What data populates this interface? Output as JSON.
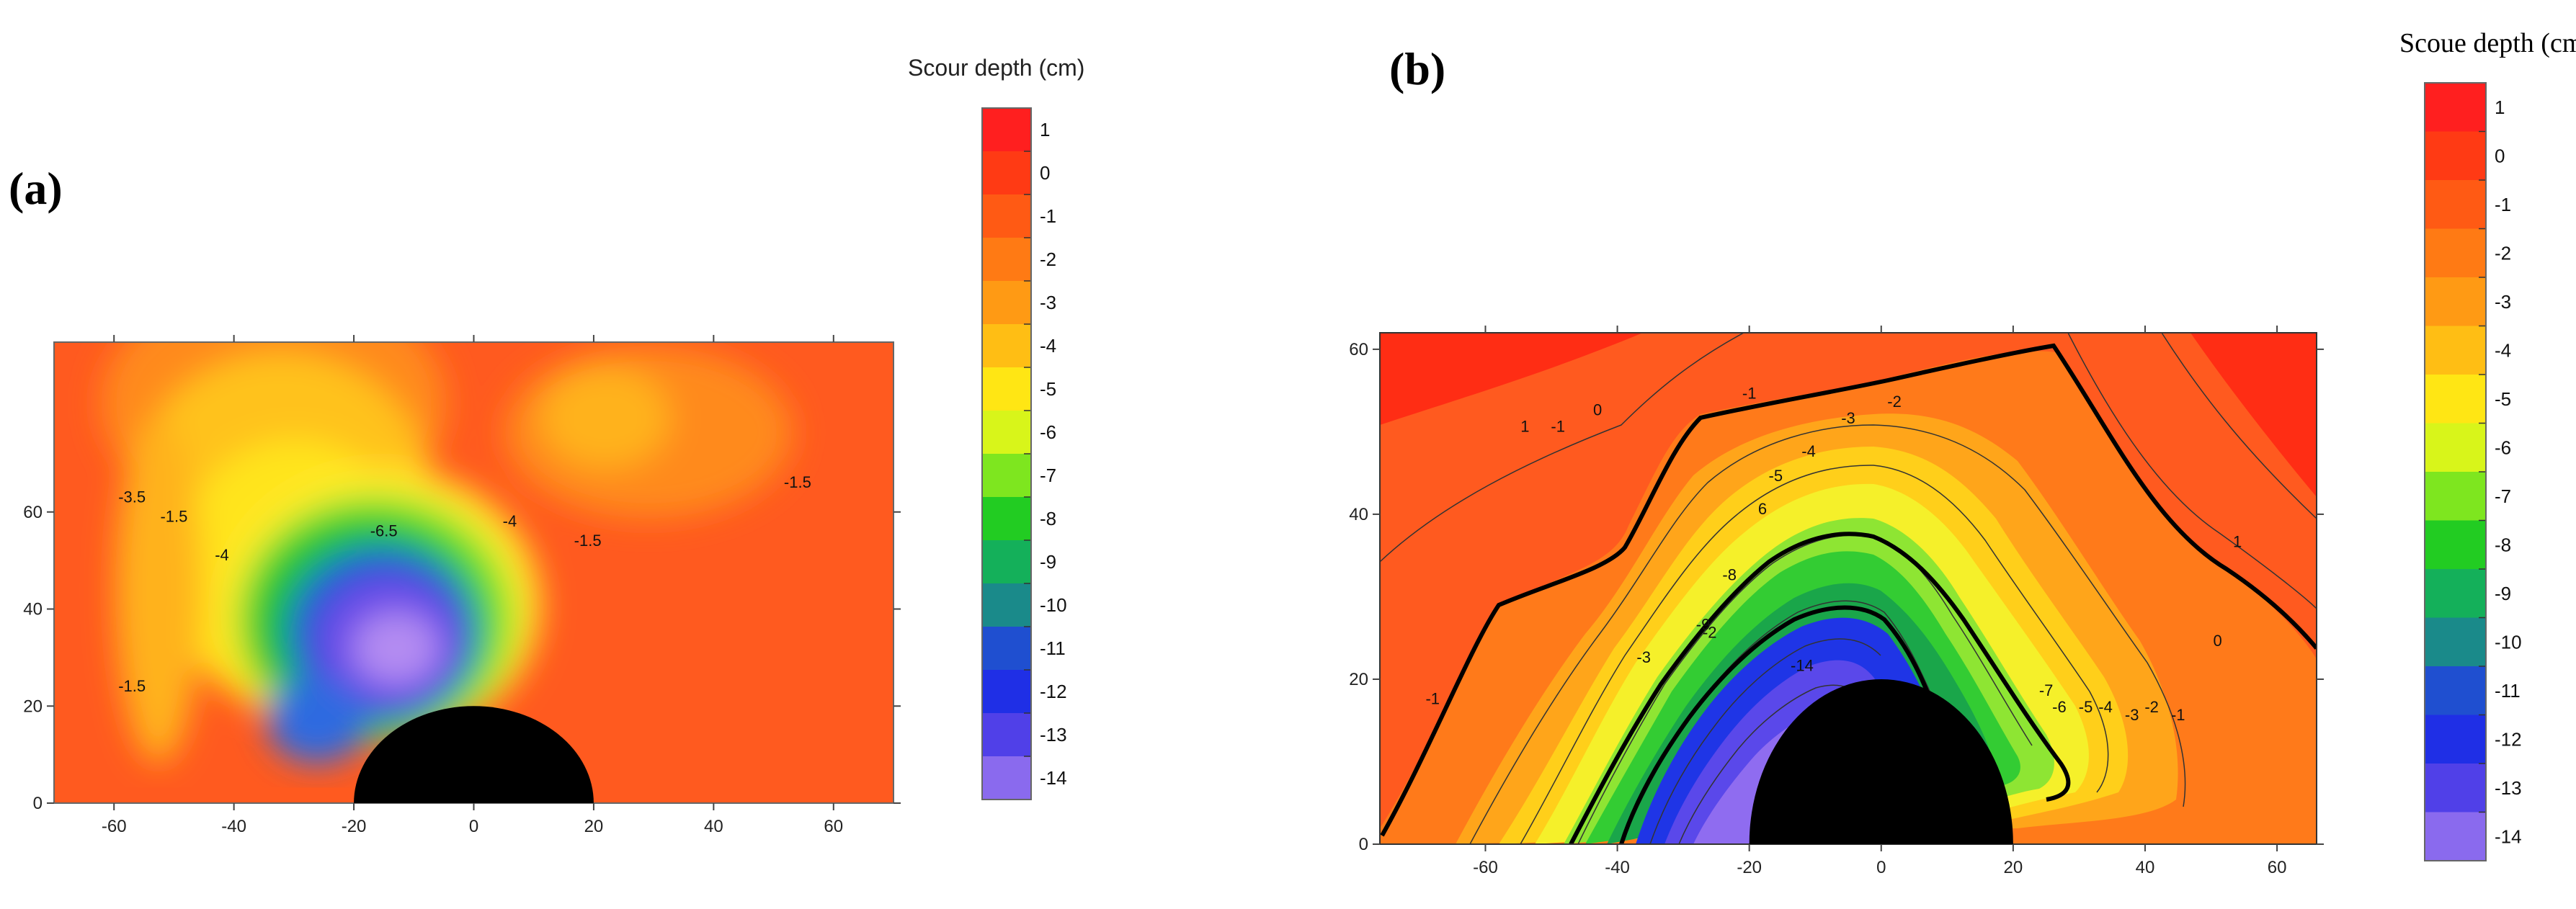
{
  "chart_data": [
    {
      "panel": "(a)",
      "type": "heatmap",
      "subtype": "filled-contour",
      "colorbar_title": "Scour depth (cm)",
      "colorbar_levels": [
        1,
        0,
        -1,
        -2,
        -3,
        -4,
        -5,
        -6,
        -7,
        -8,
        -9,
        -10,
        -11,
        -12,
        -13,
        -14
      ],
      "xlim": [
        -70,
        70
      ],
      "ylim": [
        0,
        95
      ],
      "xticks": [
        -60,
        -40,
        -20,
        0,
        20,
        40,
        60
      ],
      "yticks": [
        0,
        20,
        40,
        60
      ],
      "xtick_labels": [
        "-60",
        "-40",
        "-20",
        "0",
        "20",
        "40",
        "60"
      ],
      "ytick_labels": [
        "0",
        "20",
        "40",
        "60"
      ],
      "xlabel": "",
      "ylabel": "",
      "pier": {
        "center_x": 0,
        "radius": 20
      },
      "contour_labels": [
        {
          "x": -57,
          "y": 62,
          "text": "-3.5"
        },
        {
          "x": -50,
          "y": 58,
          "text": "-1.5"
        },
        {
          "x": -42,
          "y": 50,
          "text": "-4"
        },
        {
          "x": -15,
          "y": 55,
          "text": "-6.5"
        },
        {
          "x": 6,
          "y": 57,
          "text": "-4"
        },
        {
          "x": 19,
          "y": 53,
          "text": "-1.5"
        },
        {
          "x": 54,
          "y": 65,
          "text": "-1.5"
        },
        {
          "x": -57,
          "y": 23,
          "text": "-1.5"
        }
      ]
    },
    {
      "panel": "(b)",
      "type": "heatmap",
      "subtype": "filled-contour",
      "colorbar_title": "Scoue depth (cm)",
      "colorbar_levels": [
        1,
        0,
        -1,
        -2,
        -3,
        -4,
        -5,
        -6,
        -7,
        -8,
        -9,
        -10,
        -11,
        -12,
        -13,
        -14
      ],
      "xlim": [
        -76,
        66
      ],
      "ylim": [
        0,
        62
      ],
      "xticks": [
        -60,
        -40,
        -20,
        0,
        20,
        40,
        60
      ],
      "yticks": [
        0,
        20,
        40,
        60
      ],
      "xtick_labels": [
        "-60",
        "-40",
        "-20",
        "0",
        "20",
        "40",
        "60"
      ],
      "ytick_labels": [
        "0",
        "20",
        "40",
        "60"
      ],
      "xlabel": "",
      "ylabel": "",
      "pier": {
        "center_x": 0,
        "radius": 20
      },
      "contour_labels": [
        {
          "x": -49,
          "y": 50,
          "text": "-1"
        },
        {
          "x": -43,
          "y": 52,
          "text": "0"
        },
        {
          "x": -20,
          "y": 54,
          "text": "-1"
        },
        {
          "x": -5,
          "y": 51,
          "text": "-3"
        },
        {
          "x": 2,
          "y": 53,
          "text": "-2"
        },
        {
          "x": -11,
          "y": 47,
          "text": "-4"
        },
        {
          "x": -16,
          "y": 44,
          "text": "-5"
        },
        {
          "x": -18,
          "y": 40,
          "text": "6"
        },
        {
          "x": -26,
          "y": 25,
          "text": "-2"
        },
        {
          "x": -68,
          "y": 17,
          "text": "-1"
        },
        {
          "x": -36,
          "y": 22,
          "text": "-3"
        },
        {
          "x": -23,
          "y": 32,
          "text": "-8"
        },
        {
          "x": -27,
          "y": 26,
          "text": "-9"
        },
        {
          "x": -12,
          "y": 21,
          "text": "-14"
        },
        {
          "x": 25,
          "y": 18,
          "text": "-7"
        },
        {
          "x": 27,
          "y": 16,
          "text": "-6"
        },
        {
          "x": 31,
          "y": 16,
          "text": "-5"
        },
        {
          "x": 34,
          "y": 16,
          "text": "-4"
        },
        {
          "x": 38,
          "y": 15,
          "text": "-3"
        },
        {
          "x": 41,
          "y": 16,
          "text": "-2"
        },
        {
          "x": 45,
          "y": 15,
          "text": "-1"
        },
        {
          "x": 51,
          "y": 24,
          "text": "0"
        },
        {
          "x": 54,
          "y": 36,
          "text": "1"
        },
        {
          "x": -54,
          "y": 50,
          "text": "1"
        }
      ]
    }
  ]
}
